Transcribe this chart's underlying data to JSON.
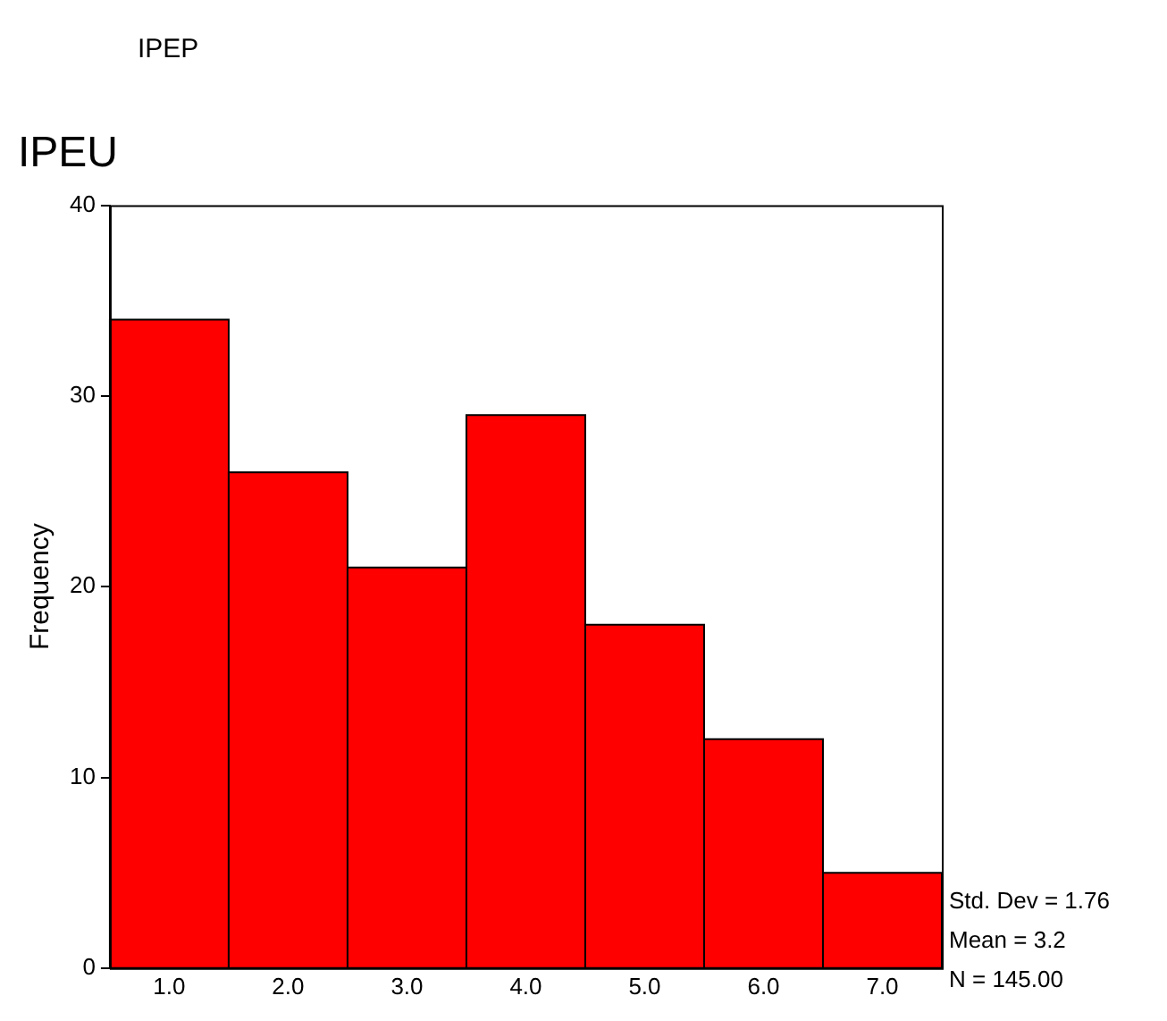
{
  "chart_data": {
    "type": "histogram",
    "title": "IPEU",
    "ylabel": "Frequency",
    "annotations": [
      "IPEP",
      "Std. Dev = 1.76",
      "Mean = 3.2",
      "N = 145.00"
    ],
    "bins": [
      0.5,
      1.5,
      2.5,
      3.5,
      4.5,
      5.5,
      6.5,
      7.5
    ],
    "values": [
      34,
      26,
      21,
      29,
      18,
      12,
      5
    ],
    "color": "#ff0000",
    "xlim": [
      0.5,
      7.5
    ],
    "xticks": [
      {
        "value": 1,
        "label": "1.0"
      },
      {
        "value": 2,
        "label": "2.0"
      },
      {
        "value": 3,
        "label": "3.0"
      },
      {
        "value": 4,
        "label": "4.0"
      },
      {
        "value": 5,
        "label": "5.0"
      },
      {
        "value": 6,
        "label": "6.0"
      },
      {
        "value": 7,
        "label": "7.0"
      }
    ],
    "ylim": [
      0,
      40
    ],
    "yticks": [
      0,
      10,
      20,
      30,
      40
    ],
    "grid": false,
    "legend": false
  }
}
